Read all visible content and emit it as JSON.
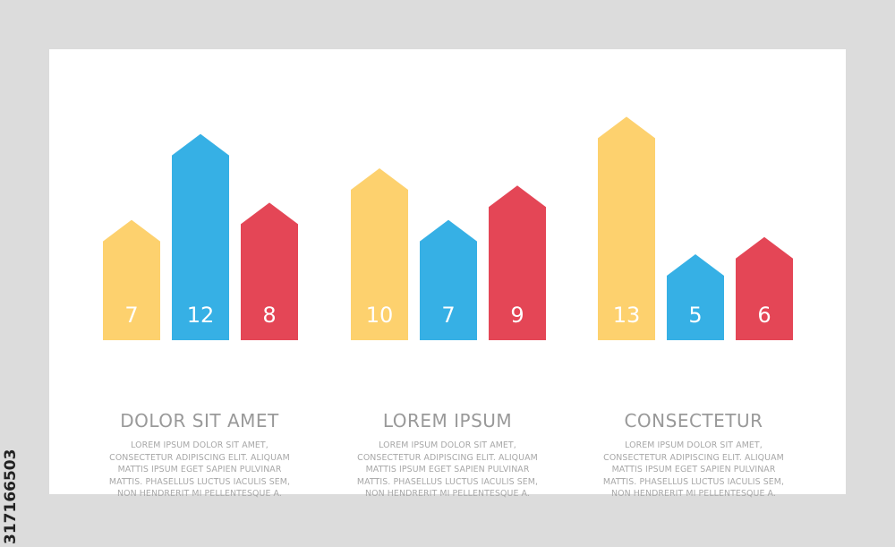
{
  "chart_data": [
    {
      "type": "bar",
      "title": "DOLOR SIT AMET",
      "description": [
        "LOREM IPSUM DOLOR SIT AMET,",
        "CONSECTETUR ADIPISCING ELIT. ALIQUAM",
        "MATTIS IPSUM EGET SAPIEN PULVINAR",
        "MATTIS. PHASELLUS LUCTUS IACULIS SEM,",
        "NON HENDRERIT MI PELLENTESQUE A."
      ],
      "values": [
        7,
        12,
        8
      ],
      "labels": [
        "7",
        "12",
        "8"
      ]
    },
    {
      "type": "bar",
      "title": "LOREM IPSUM",
      "description": [
        "LOREM IPSUM DOLOR SIT AMET,",
        "CONSECTETUR ADIPISCING ELIT. ALIQUAM",
        "MATTIS IPSUM EGET SAPIEN PULVINAR",
        "MATTIS. PHASELLUS LUCTUS IACULIS SEM,",
        "NON HENDRERIT MI PELLENTESQUE A."
      ],
      "values": [
        10,
        7,
        9
      ],
      "labels": [
        "10",
        "7",
        "9"
      ]
    },
    {
      "type": "bar",
      "title": "CONSECTETUR",
      "description": [
        "LOREM IPSUM DOLOR SIT AMET,",
        "CONSECTETUR ADIPISCING ELIT. ALIQUAM",
        "MATTIS IPSUM EGET SAPIEN PULVINAR",
        "MATTIS. PHASELLUS LUCTUS IACULIS SEM,",
        "NON HENDRERIT MI PELLENTESQUE A."
      ],
      "values": [
        13,
        5,
        6
      ],
      "labels": [
        "13",
        "5",
        "6"
      ]
    }
  ],
  "colors": {
    "bar_1": "#fdd16e",
    "bar_2": "#36b0e5",
    "bar_3": "#e44656",
    "background": "#dcdcdc",
    "card": "#ffffff",
    "title_text": "#999999",
    "body_text": "#a7a7a7",
    "value_text": "#ffffff"
  },
  "stock_id": "317166503"
}
